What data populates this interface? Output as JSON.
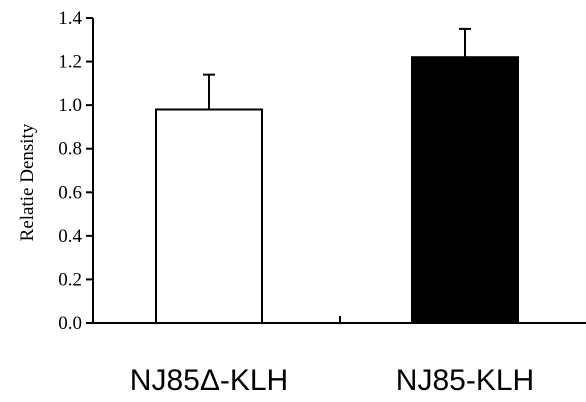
{
  "chart_data": {
    "type": "bar",
    "title": "",
    "xlabel": "",
    "ylabel": "Relatie Density",
    "ylim": [
      0,
      1.4
    ],
    "yticks": [
      "0.0",
      "0.2",
      "0.4",
      "0.6",
      "0.8",
      "1.0",
      "1.2",
      "1.4"
    ],
    "grid": false,
    "categories": [
      "NJ85Δ-KLH",
      "NJ85-KLH"
    ],
    "values": [
      0.98,
      1.22
    ],
    "error_upper": [
      0.16,
      0.13
    ],
    "bar_colors": [
      "#ffffff",
      "#000000"
    ],
    "bar_edge_color": "#000000"
  }
}
